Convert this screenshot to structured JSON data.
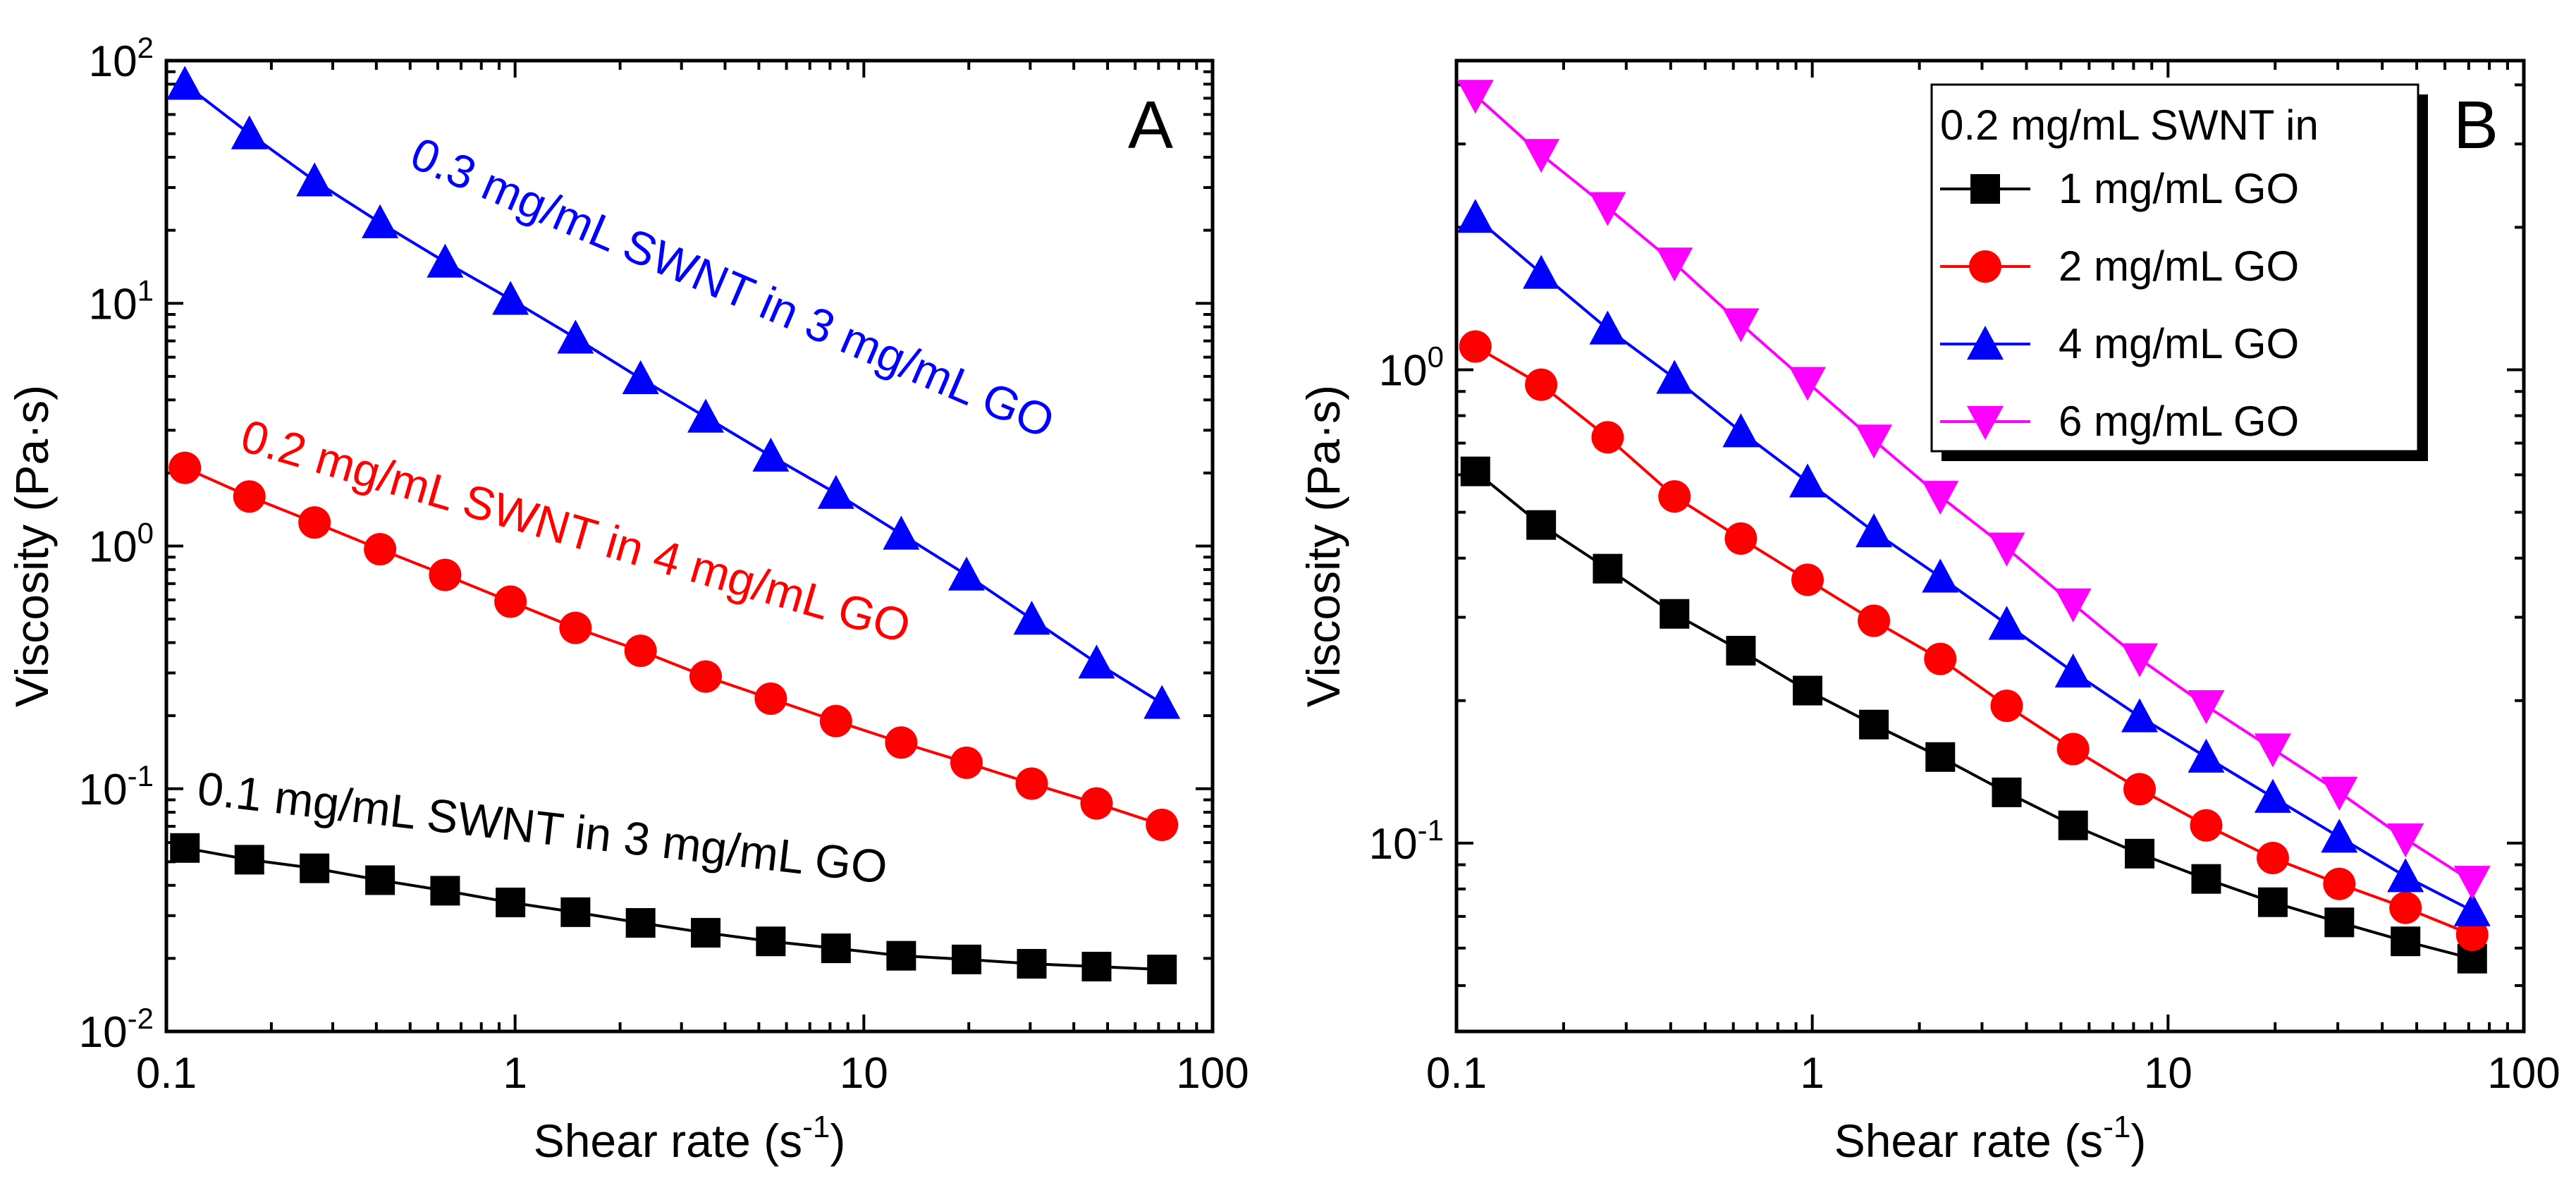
{
  "chart_data": [
    {
      "panel": "A",
      "type": "line",
      "xscale": "log",
      "yscale": "log",
      "xlim": [
        0.1,
        100
      ],
      "ylim": [
        0.01,
        100
      ],
      "xlabel": "Shear rate (s",
      "xlabel_sup": "-1",
      "xlabel_close": ")",
      "ylabel": "Viscosity (Pa·s)",
      "x_ticks": [
        {
          "value": 0.1,
          "label": "0.1"
        },
        {
          "value": 1,
          "label": "1"
        },
        {
          "value": 10,
          "label": "10"
        },
        {
          "value": 100,
          "label": "100"
        }
      ],
      "y_ticks": [
        {
          "value": 0.01,
          "base": "10",
          "exp": "-2"
        },
        {
          "value": 0.1,
          "base": "10",
          "exp": "-1"
        },
        {
          "value": 1,
          "base": "10",
          "exp": "0"
        },
        {
          "value": 10,
          "base": "10",
          "exp": "1"
        },
        {
          "value": 100,
          "base": "10",
          "exp": "2"
        }
      ],
      "x": [
        0.113,
        0.173,
        0.266,
        0.41,
        0.63,
        0.97,
        1.49,
        2.29,
        3.52,
        5.41,
        8.32,
        12.8,
        19.7,
        30.3,
        46.5,
        71.6
      ],
      "series": [
        {
          "name": "0.3 mg/mL SWNT in 3 mg/mL GO",
          "color": "#0000ff",
          "marker": "triangle-up",
          "values": [
            80,
            50,
            32,
            21.5,
            14.8,
            10.4,
            7.2,
            4.9,
            3.4,
            2.35,
            1.65,
            1.12,
            0.76,
            0.5,
            0.33,
            0.225
          ]
        },
        {
          "name": "0.2 mg/mL SWNT in 4 mg/mL GO",
          "color": "#ff0000",
          "marker": "circle",
          "values": [
            2.1,
            1.6,
            1.25,
            0.97,
            0.76,
            0.59,
            0.46,
            0.37,
            0.29,
            0.235,
            0.19,
            0.155,
            0.128,
            0.105,
            0.087,
            0.071
          ]
        },
        {
          "name": "0.1 mg/mL SWNT in 3 mg/mL GO",
          "color": "#000000",
          "marker": "square",
          "values": [
            0.057,
            0.051,
            0.047,
            0.042,
            0.038,
            0.034,
            0.031,
            0.028,
            0.0255,
            0.0235,
            0.022,
            0.0205,
            0.0198,
            0.019,
            0.0185,
            0.018
          ]
        }
      ],
      "annotations": [
        {
          "text": "0.3 mg/mL SWNT in 3 mg/mL GO",
          "color": "#0000ff",
          "series": 0
        },
        {
          "text": "0.2 mg/mL SWNT in 4 mg/mL GO",
          "color": "#ff0000",
          "series": 1
        },
        {
          "text": "0.1 mg/mL SWNT in 3 mg/mL GO",
          "color": "#000000",
          "series": 2
        }
      ],
      "panel_label": "A"
    },
    {
      "panel": "B",
      "type": "line",
      "xscale": "log",
      "yscale": "log",
      "xlim": [
        0.1,
        100
      ],
      "ylim": [
        0.04,
        4.5
      ],
      "xlabel": "Shear rate (s",
      "xlabel_sup": "-1",
      "xlabel_close": ")",
      "ylabel": "Viscosity (Pa·s)",
      "x_ticks": [
        {
          "value": 0.1,
          "label": "0.1"
        },
        {
          "value": 1,
          "label": "1"
        },
        {
          "value": 10,
          "label": "10"
        },
        {
          "value": 100,
          "label": "100"
        }
      ],
      "y_ticks": [
        {
          "value": 0.1,
          "base": "10",
          "exp": "-1"
        },
        {
          "value": 1,
          "base": "10",
          "exp": "0"
        }
      ],
      "legend_title": "0.2 mg/mL SWNT in",
      "legend_position": "top-right",
      "x": [
        0.113,
        0.173,
        0.266,
        0.41,
        0.63,
        0.97,
        1.49,
        2.29,
        3.52,
        5.41,
        8.32,
        12.8,
        19.7,
        30.3,
        46.5,
        71.6
      ],
      "series": [
        {
          "name": "1 mg/mL GO",
          "color": "#000000",
          "marker": "square",
          "values": [
            0.61,
            0.47,
            0.38,
            0.305,
            0.255,
            0.21,
            0.178,
            0.152,
            0.128,
            0.109,
            0.095,
            0.084,
            0.075,
            0.068,
            0.062,
            0.057
          ]
        },
        {
          "name": "2 mg/mL GO",
          "color": "#ff0000",
          "marker": "circle",
          "values": [
            1.12,
            0.93,
            0.72,
            0.54,
            0.44,
            0.36,
            0.295,
            0.245,
            0.195,
            0.158,
            0.13,
            0.109,
            0.093,
            0.082,
            0.073,
            0.064
          ]
        },
        {
          "name": "4 mg/mL GO",
          "color": "#0000ff",
          "marker": "triangle-up",
          "values": [
            2.1,
            1.6,
            1.22,
            0.96,
            0.74,
            0.58,
            0.455,
            0.365,
            0.29,
            0.23,
            0.185,
            0.152,
            0.125,
            0.103,
            0.085,
            0.072
          ]
        },
        {
          "name": "6 mg/mL GO",
          "color": "#ff00ff",
          "marker": "triangle-down",
          "values": [
            3.8,
            2.85,
            2.2,
            1.68,
            1.25,
            0.94,
            0.71,
            0.54,
            0.42,
            0.32,
            0.245,
            0.195,
            0.158,
            0.128,
            0.102,
            0.083
          ]
        }
      ],
      "panel_label": "B"
    }
  ]
}
